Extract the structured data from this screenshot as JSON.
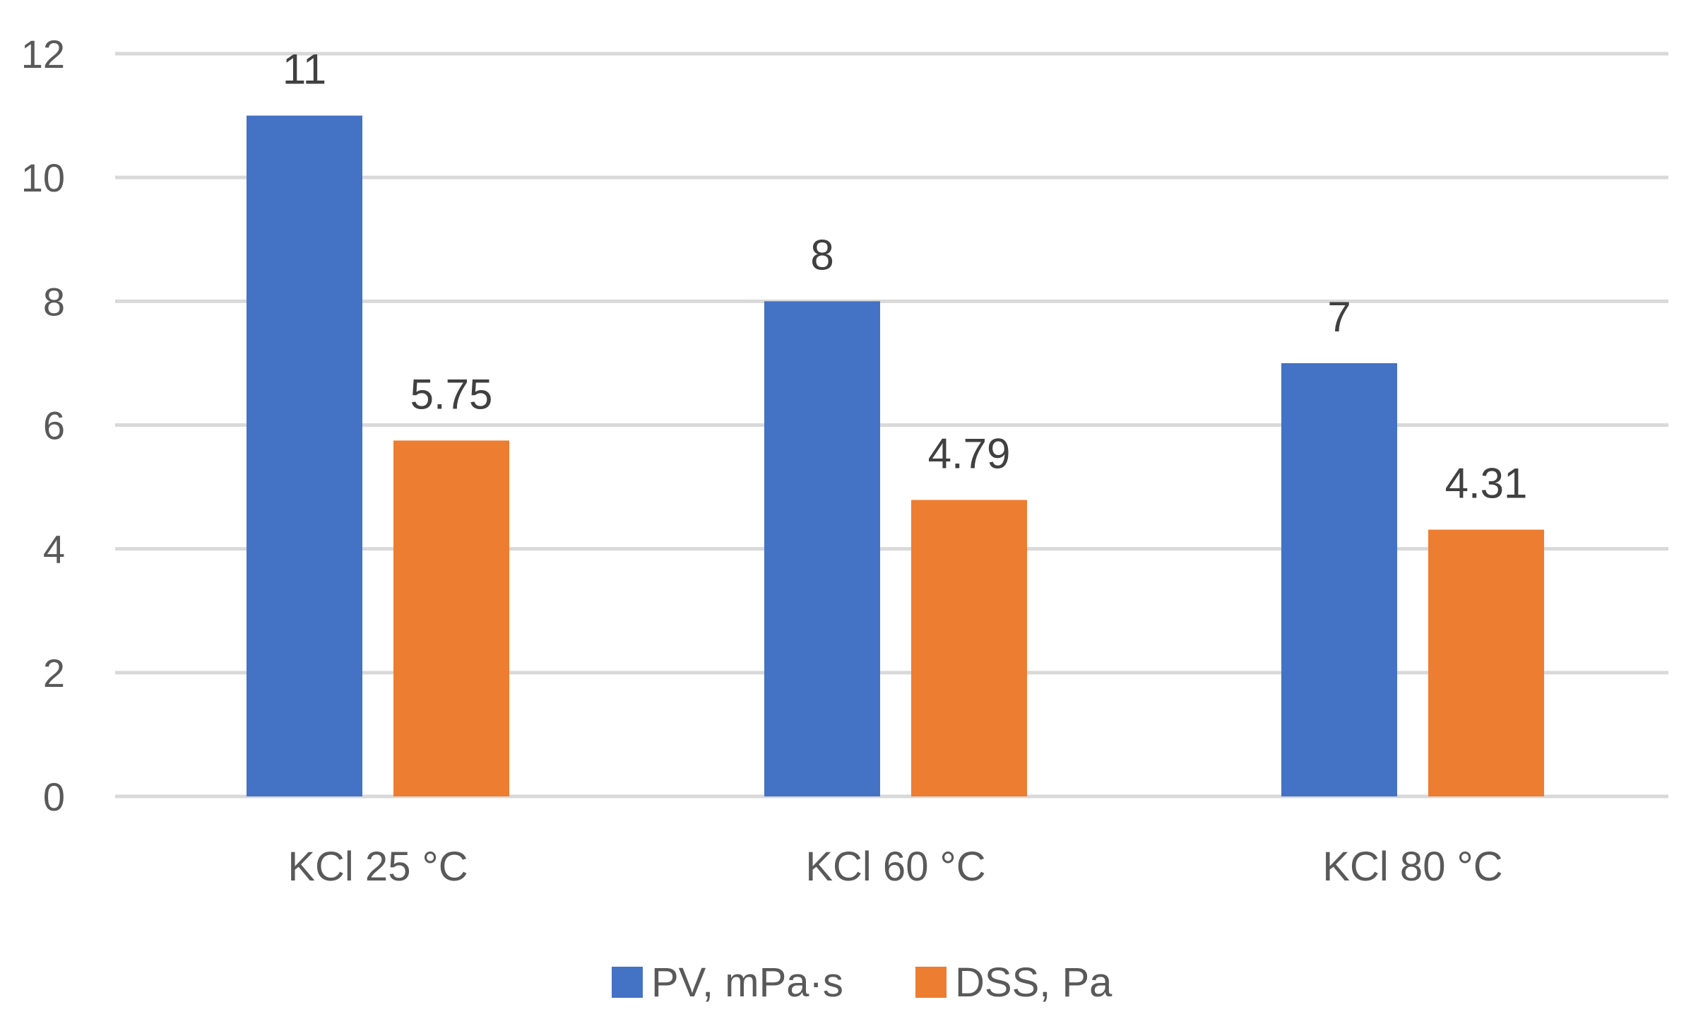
{
  "chart_data": {
    "type": "bar",
    "title": "",
    "xlabel": "",
    "ylabel": "",
    "categories": [
      "KCl 25 °C",
      "KCl 60 °C",
      "KCl 80 °C"
    ],
    "series": [
      {
        "name": "PV, mPa·s",
        "color": "#4472C4",
        "values": [
          11,
          8,
          7
        ],
        "labels": [
          "11",
          "8",
          "7"
        ]
      },
      {
        "name": "DSS, Pa",
        "color": "#ED7D31",
        "values": [
          5.75,
          4.79,
          4.31
        ],
        "labels": [
          "5.75",
          "4.79",
          "4.31"
        ]
      }
    ],
    "ylim": [
      0,
      12
    ],
    "yticks": [
      0,
      2,
      4,
      6,
      8,
      10,
      12
    ],
    "ytick_labels": [
      "0",
      "2",
      "4",
      "6",
      "8",
      "10",
      "12"
    ],
    "grid": true,
    "gridline_color": "#D9D9D9",
    "legend_position": "bottom"
  }
}
